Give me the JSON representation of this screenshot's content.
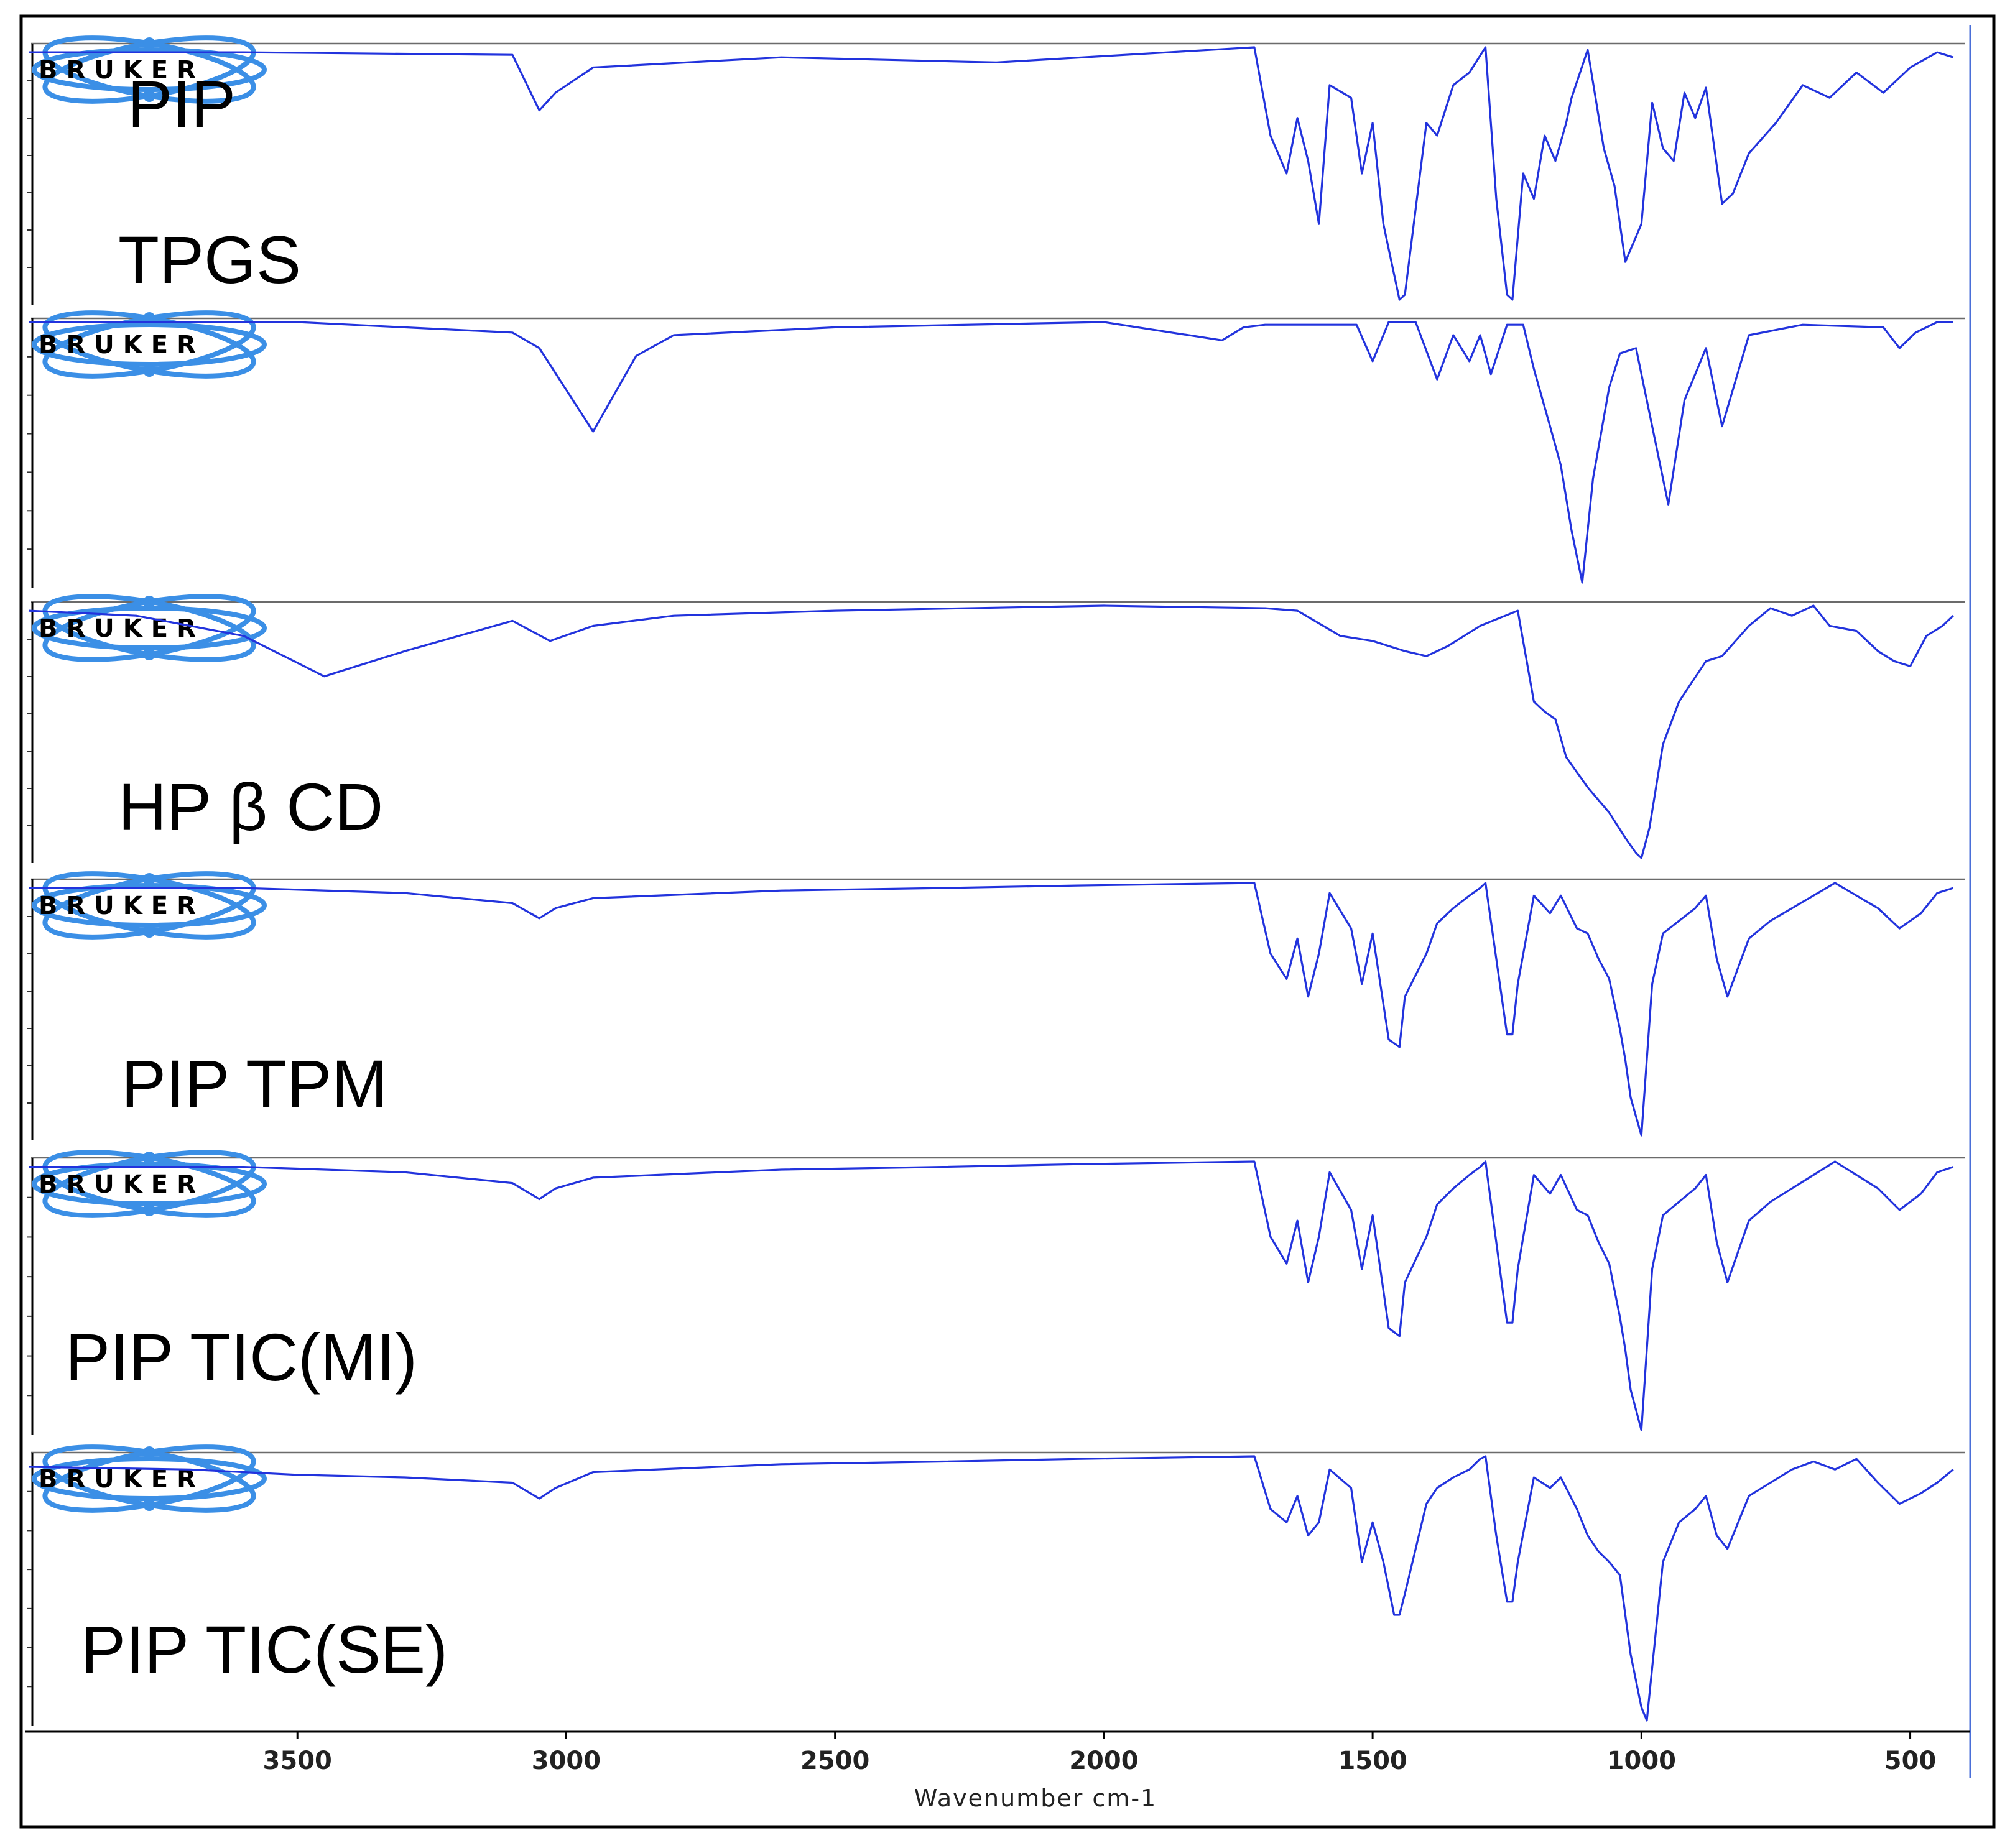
{
  "chart_data": {
    "type": "line",
    "xlabel": "Wavenumber cm-1",
    "x_reversed": true,
    "xlim": [
      4000,
      400
    ],
    "x_ticks": [
      3500,
      3000,
      2500,
      2000,
      1500,
      1000,
      500
    ],
    "logo_text": "BRUKER",
    "series": [
      {
        "name": "PIP",
        "x": [
          4000,
          3600,
          3100,
          3050,
          3020,
          2950,
          2600,
          2200,
          1720,
          1690,
          1660,
          1640,
          1620,
          1600,
          1580,
          1540,
          1520,
          1500,
          1480,
          1470,
          1450,
          1440,
          1400,
          1380,
          1350,
          1320,
          1290,
          1270,
          1250,
          1240,
          1220,
          1200,
          1180,
          1160,
          1140,
          1130,
          1100,
          1070,
          1050,
          1030,
          1000,
          980,
          960,
          940,
          920,
          900,
          880,
          850,
          830,
          800,
          750,
          700,
          650,
          600,
          550,
          500,
          450,
          420
        ],
        "y": [
          98,
          98,
          97,
          75,
          82,
          92,
          96,
          94,
          100,
          65,
          50,
          72,
          55,
          30,
          85,
          80,
          50,
          70,
          30,
          20,
          0,
          2,
          70,
          65,
          85,
          90,
          100,
          40,
          2,
          0,
          50,
          40,
          65,
          55,
          70,
          80,
          99,
          60,
          45,
          15,
          30,
          78,
          60,
          55,
          82,
          72,
          84,
          38,
          42,
          58,
          70,
          85,
          80,
          90,
          82,
          92,
          98,
          96
        ]
      },
      {
        "name": "TPGS",
        "x": [
          4000,
          3500,
          3100,
          3050,
          2950,
          2870,
          2800,
          2500,
          2000,
          1780,
          1740,
          1700,
          1530,
          1500,
          1470,
          1420,
          1380,
          1350,
          1320,
          1300,
          1280,
          1250,
          1220,
          1200,
          1170,
          1150,
          1130,
          1110,
          1090,
          1060,
          1040,
          1010,
          980,
          950,
          920,
          880,
          850,
          800,
          700,
          550,
          520,
          490,
          450,
          420
        ],
        "y": [
          100,
          100,
          96,
          90,
          58,
          87,
          95,
          98,
          100,
          93,
          98,
          99,
          99,
          85,
          100,
          100,
          78,
          95,
          85,
          95,
          80,
          99,
          99,
          82,
          60,
          45,
          20,
          0,
          40,
          75,
          88,
          90,
          60,
          30,
          70,
          90,
          60,
          95,
          99,
          98,
          90,
          96,
          100,
          100
        ]
      },
      {
        "name": "HP β CD",
        "x": [
          4000,
          3800,
          3600,
          3450,
          3300,
          3100,
          3030,
          2950,
          2800,
          2500,
          2000,
          1700,
          1640,
          1560,
          1500,
          1440,
          1400,
          1360,
          1300,
          1230,
          1200,
          1180,
          1160,
          1140,
          1100,
          1060,
          1030,
          1010,
          1000,
          985,
          960,
          930,
          880,
          850,
          800,
          760,
          720,
          680,
          650,
          600,
          560,
          530,
          500,
          470,
          440,
          420
        ],
        "y": [
          98,
          96,
          88,
          72,
          82,
          94,
          86,
          92,
          96,
          98,
          100,
          99,
          98,
          88,
          86,
          82,
          80,
          84,
          92,
          98,
          62,
          58,
          55,
          40,
          28,
          18,
          8,
          2,
          0,
          12,
          45,
          62,
          78,
          80,
          92,
          99,
          96,
          100,
          92,
          90,
          82,
          78,
          76,
          88,
          92,
          96
        ]
      },
      {
        "name": "PIP TPM",
        "x": [
          4000,
          3600,
          3300,
          3100,
          3050,
          3020,
          2950,
          2600,
          2300,
          2050,
          1720,
          1690,
          1660,
          1640,
          1620,
          1600,
          1580,
          1540,
          1520,
          1500,
          1480,
          1470,
          1450,
          1440,
          1400,
          1380,
          1350,
          1320,
          1300,
          1290,
          1270,
          1250,
          1240,
          1230,
          1200,
          1170,
          1150,
          1120,
          1100,
          1080,
          1060,
          1040,
          1030,
          1020,
          1000,
          980,
          960,
          930,
          900,
          880,
          860,
          840,
          800,
          760,
          720,
          680,
          640,
          600,
          560,
          520,
          480,
          450,
          420
        ],
        "y": [
          98,
          98,
          96,
          92,
          86,
          90,
          94,
          97,
          98,
          99,
          100,
          72,
          62,
          78,
          55,
          72,
          96,
          82,
          60,
          80,
          52,
          38,
          35,
          55,
          72,
          84,
          90,
          95,
          98,
          100,
          70,
          40,
          40,
          60,
          95,
          88,
          95,
          82,
          80,
          70,
          62,
          42,
          30,
          15,
          0,
          60,
          80,
          85,
          90,
          95,
          70,
          55,
          78,
          85,
          90,
          95,
          100,
          95,
          90,
          82,
          88,
          96,
          98
        ]
      },
      {
        "name": "PIP TIC(MI)",
        "x": [
          4000,
          3600,
          3300,
          3100,
          3050,
          3020,
          2950,
          2600,
          2300,
          2050,
          1720,
          1690,
          1660,
          1640,
          1620,
          1600,
          1580,
          1540,
          1520,
          1500,
          1480,
          1470,
          1450,
          1440,
          1400,
          1380,
          1350,
          1320,
          1300,
          1290,
          1270,
          1250,
          1240,
          1230,
          1200,
          1170,
          1150,
          1120,
          1100,
          1080,
          1060,
          1040,
          1030,
          1020,
          1000,
          980,
          960,
          930,
          900,
          880,
          860,
          840,
          800,
          760,
          720,
          680,
          640,
          600,
          560,
          520,
          480,
          450,
          420
        ],
        "y": [
          98,
          98,
          96,
          92,
          86,
          90,
          94,
          97,
          98,
          99,
          100,
          72,
          62,
          78,
          55,
          72,
          96,
          82,
          60,
          80,
          52,
          38,
          35,
          55,
          72,
          84,
          90,
          95,
          98,
          100,
          70,
          40,
          40,
          60,
          95,
          88,
          95,
          82,
          80,
          70,
          62,
          42,
          30,
          15,
          0,
          60,
          80,
          85,
          90,
          95,
          70,
          55,
          78,
          85,
          90,
          95,
          100,
          95,
          90,
          82,
          88,
          96,
          98
        ]
      },
      {
        "name": "PIP TIC(SE)",
        "x": [
          4000,
          3700,
          3500,
          3300,
          3100,
          3050,
          3020,
          2950,
          2600,
          2300,
          2050,
          1720,
          1690,
          1660,
          1640,
          1620,
          1600,
          1580,
          1540,
          1520,
          1500,
          1480,
          1460,
          1450,
          1440,
          1400,
          1380,
          1350,
          1320,
          1300,
          1290,
          1270,
          1250,
          1240,
          1230,
          1200,
          1170,
          1150,
          1120,
          1100,
          1080,
          1060,
          1040,
          1020,
          1000,
          990,
          980,
          960,
          930,
          900,
          880,
          860,
          840,
          800,
          760,
          720,
          680,
          640,
          600,
          560,
          520,
          480,
          450,
          420
        ],
        "y": [
          96,
          95,
          93,
          92,
          90,
          84,
          88,
          94,
          97,
          98,
          99,
          100,
          80,
          75,
          85,
          70,
          75,
          95,
          88,
          60,
          75,
          60,
          40,
          40,
          48,
          82,
          88,
          92,
          95,
          99,
          100,
          70,
          45,
          45,
          60,
          92,
          88,
          92,
          80,
          70,
          64,
          60,
          55,
          25,
          5,
          0,
          20,
          60,
          75,
          80,
          85,
          70,
          65,
          85,
          90,
          95,
          98,
          95,
          99,
          90,
          82,
          86,
          90,
          95
        ]
      }
    ]
  }
}
